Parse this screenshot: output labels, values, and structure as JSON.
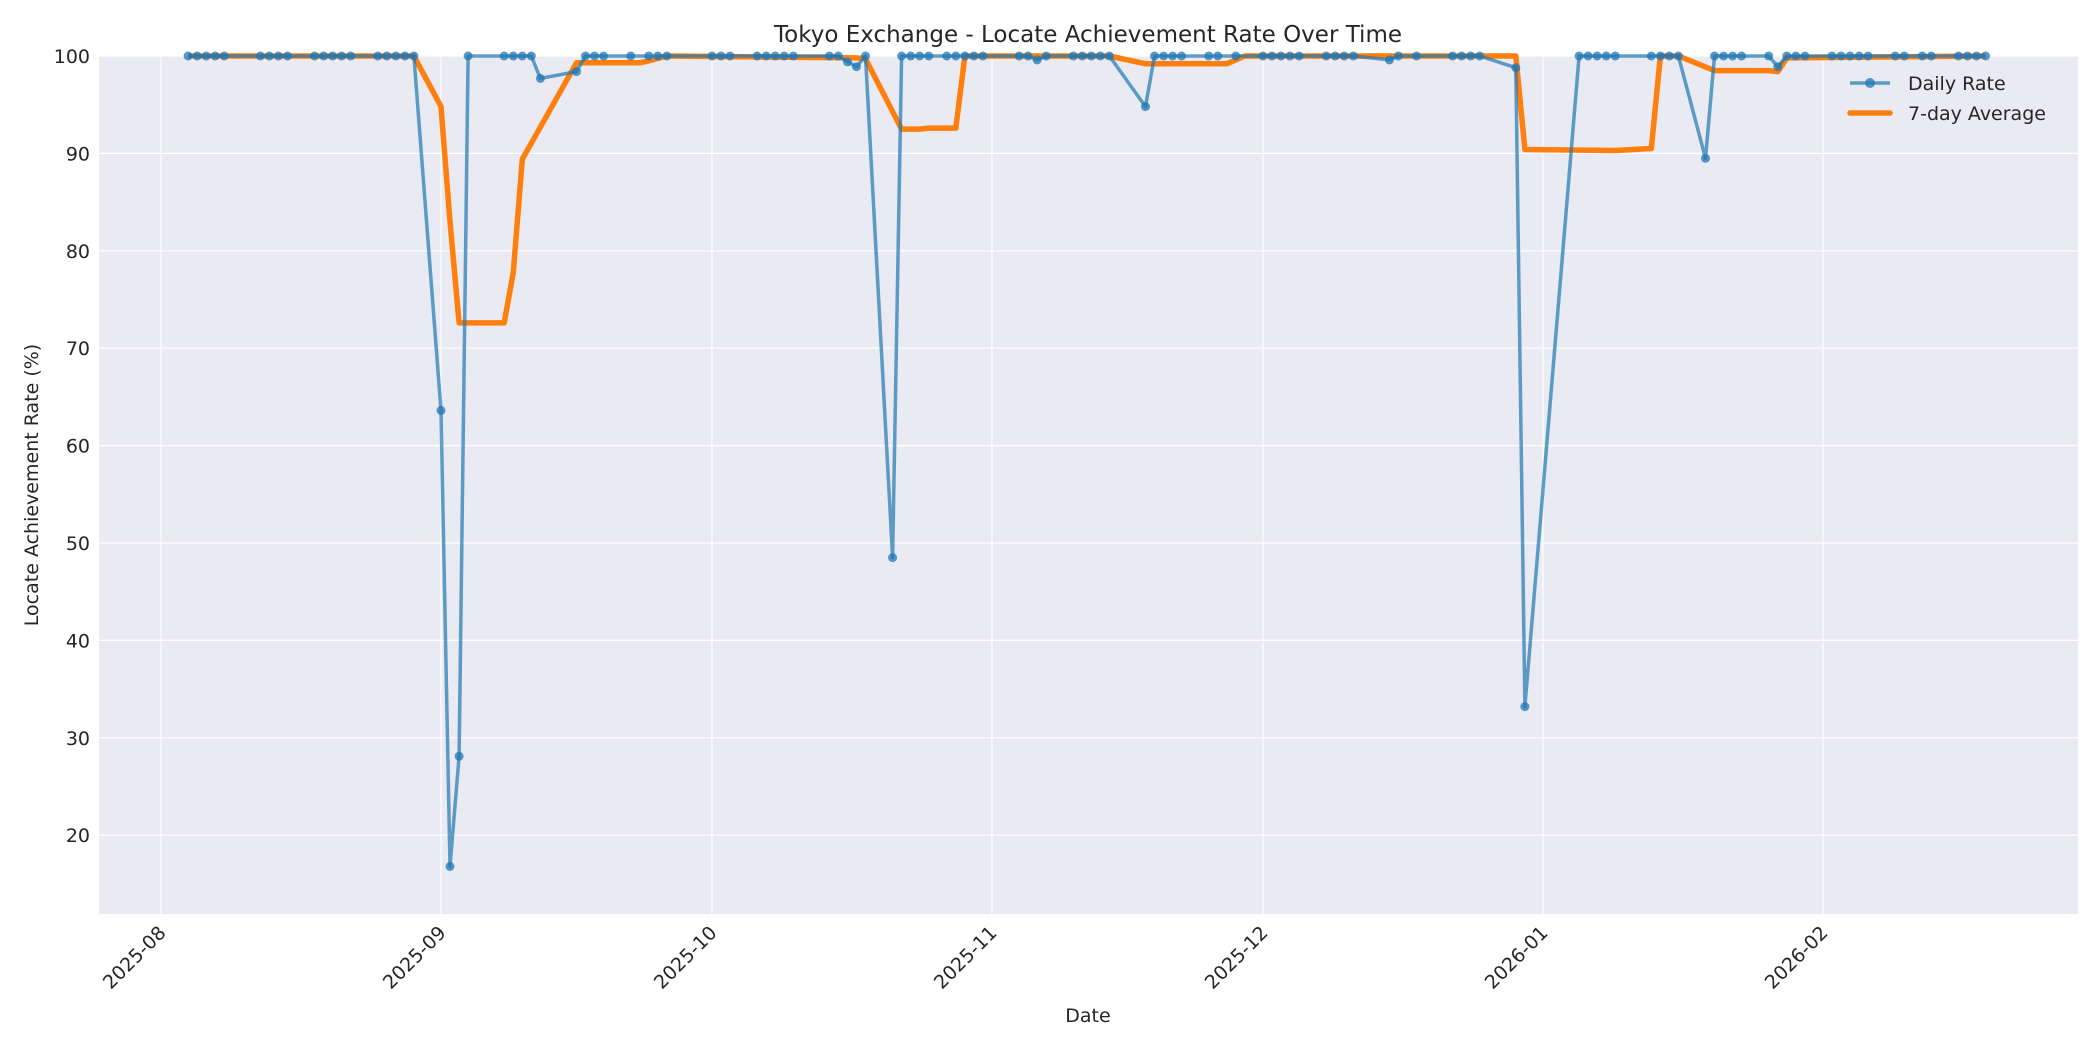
{
  "chart_data": {
    "type": "line",
    "title": "Tokyo Exchange - Locate Achievement Rate Over Time",
    "xlabel": "Date",
    "ylabel": "Locate Achievement Rate (%)",
    "ylim": [
      11.9,
      100
    ],
    "yticks": [
      20,
      30,
      40,
      50,
      60,
      70,
      80,
      90,
      100
    ],
    "xlim": [
      "2025-07-25",
      "2026-02-28"
    ],
    "xticks": [
      "2025-08",
      "2025-09",
      "2025-10",
      "2025-11",
      "2025-12",
      "2026-01",
      "2026-02"
    ],
    "grid": true,
    "legend_position": "upper right",
    "colors": {
      "daily": "#1f77b4",
      "average": "#ff7f0e",
      "background": "#eaeaf2",
      "grid": "#ffffff"
    },
    "series": [
      {
        "name": "Daily Rate",
        "style": "line-with-markers",
        "points": [
          [
            "2025-08-04",
            100
          ],
          [
            "2025-08-05",
            100
          ],
          [
            "2025-08-06",
            100
          ],
          [
            "2025-08-07",
            100
          ],
          [
            "2025-08-08",
            100
          ],
          [
            "2025-08-12",
            100
          ],
          [
            "2025-08-13",
            100
          ],
          [
            "2025-08-14",
            100
          ],
          [
            "2025-08-15",
            100
          ],
          [
            "2025-08-18",
            100
          ],
          [
            "2025-08-19",
            100
          ],
          [
            "2025-08-20",
            100
          ],
          [
            "2025-08-21",
            100
          ],
          [
            "2025-08-22",
            100
          ],
          [
            "2025-08-25",
            100
          ],
          [
            "2025-08-26",
            100
          ],
          [
            "2025-08-27",
            100
          ],
          [
            "2025-08-28",
            100
          ],
          [
            "2025-08-29",
            100
          ],
          [
            "2025-09-01",
            63.6
          ],
          [
            "2025-09-02",
            16.8
          ],
          [
            "2025-09-03",
            28.1
          ],
          [
            "2025-09-04",
            100
          ],
          [
            "2025-09-08",
            100
          ],
          [
            "2025-09-09",
            100
          ],
          [
            "2025-09-10",
            100
          ],
          [
            "2025-09-11",
            100
          ],
          [
            "2025-09-12",
            97.7
          ],
          [
            "2025-09-16",
            98.4
          ],
          [
            "2025-09-17",
            100
          ],
          [
            "2025-09-18",
            100
          ],
          [
            "2025-09-19",
            100
          ],
          [
            "2025-09-22",
            100
          ],
          [
            "2025-09-24",
            100
          ],
          [
            "2025-09-25",
            100
          ],
          [
            "2025-09-26",
            100
          ],
          [
            "2025-10-01",
            100
          ],
          [
            "2025-10-02",
            100
          ],
          [
            "2025-10-03",
            100
          ],
          [
            "2025-10-06",
            100
          ],
          [
            "2025-10-07",
            100
          ],
          [
            "2025-10-08",
            100
          ],
          [
            "2025-10-09",
            100
          ],
          [
            "2025-10-10",
            100
          ],
          [
            "2025-10-14",
            100
          ],
          [
            "2025-10-15",
            100
          ],
          [
            "2025-10-16",
            99.4
          ],
          [
            "2025-10-17",
            98.9
          ],
          [
            "2025-10-18",
            100
          ],
          [
            "2025-10-21",
            48.5
          ],
          [
            "2025-10-22",
            100
          ],
          [
            "2025-10-23",
            100
          ],
          [
            "2025-10-24",
            100
          ],
          [
            "2025-10-25",
            100
          ],
          [
            "2025-10-27",
            100
          ],
          [
            "2025-10-28",
            100
          ],
          [
            "2025-10-29",
            100
          ],
          [
            "2025-10-30",
            100
          ],
          [
            "2025-10-31",
            100
          ],
          [
            "2025-11-04",
            100
          ],
          [
            "2025-11-05",
            100
          ],
          [
            "2025-11-06",
            99.6
          ],
          [
            "2025-11-07",
            100
          ],
          [
            "2025-11-10",
            100
          ],
          [
            "2025-11-11",
            100
          ],
          [
            "2025-11-12",
            100
          ],
          [
            "2025-11-13",
            100
          ],
          [
            "2025-11-14",
            100
          ],
          [
            "2025-11-18",
            94.8
          ],
          [
            "2025-11-19",
            100
          ],
          [
            "2025-11-20",
            100
          ],
          [
            "2025-11-21",
            100
          ],
          [
            "2025-11-22",
            100
          ],
          [
            "2025-11-25",
            100
          ],
          [
            "2025-11-26",
            100
          ],
          [
            "2025-11-28",
            100
          ],
          [
            "2025-12-01",
            100
          ],
          [
            "2025-12-02",
            100
          ],
          [
            "2025-12-03",
            100
          ],
          [
            "2025-12-04",
            100
          ],
          [
            "2025-12-05",
            100
          ],
          [
            "2025-12-08",
            100
          ],
          [
            "2025-12-09",
            100
          ],
          [
            "2025-12-10",
            100
          ],
          [
            "2025-12-11",
            100
          ],
          [
            "2025-12-15",
            99.6
          ],
          [
            "2025-12-16",
            100
          ],
          [
            "2025-12-18",
            100
          ],
          [
            "2025-12-22",
            100
          ],
          [
            "2025-12-23",
            100
          ],
          [
            "2025-12-24",
            100
          ],
          [
            "2025-12-25",
            100
          ],
          [
            "2025-12-29",
            98.8
          ],
          [
            "2025-12-30",
            33.2
          ],
          [
            "2026-01-05",
            100
          ],
          [
            "2026-01-06",
            100
          ],
          [
            "2026-01-07",
            100
          ],
          [
            "2026-01-08",
            100
          ],
          [
            "2026-01-09",
            100
          ],
          [
            "2026-01-13",
            100
          ],
          [
            "2026-01-14",
            100
          ],
          [
            "2026-01-15",
            100
          ],
          [
            "2026-01-16",
            100
          ],
          [
            "2026-01-19",
            89.5
          ],
          [
            "2026-01-20",
            100
          ],
          [
            "2026-01-21",
            100
          ],
          [
            "2026-01-22",
            100
          ],
          [
            "2026-01-23",
            100
          ],
          [
            "2026-01-26",
            100
          ],
          [
            "2026-01-27",
            98.9
          ],
          [
            "2026-01-28",
            100
          ],
          [
            "2026-01-29",
            100
          ],
          [
            "2026-01-30",
            100
          ],
          [
            "2026-02-02",
            100
          ],
          [
            "2026-02-03",
            100
          ],
          [
            "2026-02-04",
            100
          ],
          [
            "2026-02-05",
            100
          ],
          [
            "2026-02-06",
            100
          ],
          [
            "2026-02-09",
            100
          ],
          [
            "2026-02-10",
            100
          ],
          [
            "2026-02-12",
            100
          ],
          [
            "2026-02-13",
            100
          ],
          [
            "2026-02-16",
            100
          ],
          [
            "2026-02-17",
            100
          ],
          [
            "2026-02-18",
            100
          ],
          [
            "2026-02-19",
            100
          ]
        ]
      },
      {
        "name": "7-day Average",
        "style": "thick-line",
        "points": [
          [
            "2025-08-04",
            100
          ],
          [
            "2025-08-29",
            100
          ],
          [
            "2025-09-01",
            94.8
          ],
          [
            "2025-09-02",
            83
          ],
          [
            "2025-09-03",
            72.6
          ],
          [
            "2025-09-08",
            72.6
          ],
          [
            "2025-09-09",
            77.8
          ],
          [
            "2025-09-10",
            89.4
          ],
          [
            "2025-09-16",
            99.3
          ],
          [
            "2025-09-22",
            99.3
          ],
          [
            "2025-09-23",
            99.3
          ],
          [
            "2025-09-24",
            99.5
          ],
          [
            "2025-09-26",
            100
          ],
          [
            "2025-10-17",
            99.8
          ],
          [
            "2025-10-18",
            99.7
          ],
          [
            "2025-10-22",
            92.5
          ],
          [
            "2025-10-24",
            92.5
          ],
          [
            "2025-10-25",
            92.6
          ],
          [
            "2025-10-28",
            92.6
          ],
          [
            "2025-10-29",
            100
          ],
          [
            "2025-11-14",
            100
          ],
          [
            "2025-11-18",
            99.2
          ],
          [
            "2025-11-20",
            99.2
          ],
          [
            "2025-11-27",
            99.2
          ],
          [
            "2025-11-29",
            100
          ],
          [
            "2025-12-29",
            100
          ],
          [
            "2025-12-30",
            90.4
          ],
          [
            "2026-01-09",
            90.3
          ],
          [
            "2026-01-13",
            90.5
          ],
          [
            "2026-01-14",
            100
          ],
          [
            "2026-01-16",
            100
          ],
          [
            "2026-01-20",
            98.5
          ],
          [
            "2026-01-26",
            98.5
          ],
          [
            "2026-01-27",
            98.4
          ],
          [
            "2026-01-28",
            99.8
          ],
          [
            "2026-02-19",
            100
          ]
        ]
      }
    ]
  }
}
